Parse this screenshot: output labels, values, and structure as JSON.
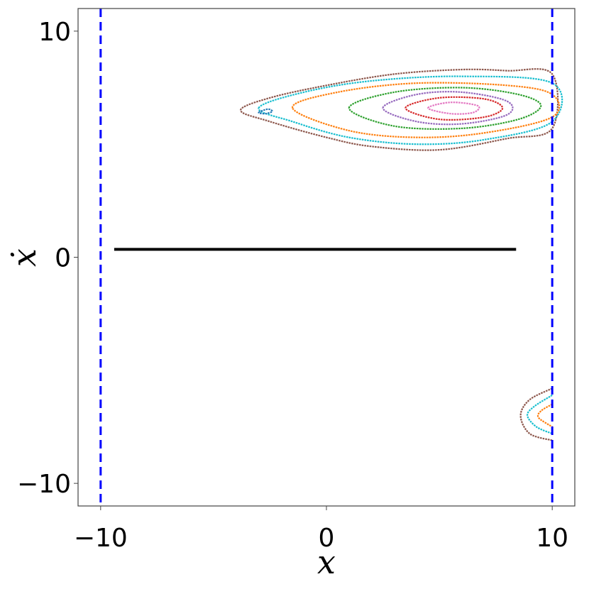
{
  "chart_data": {
    "type": "line",
    "xlabel": "x",
    "ylabel": "ẋ",
    "xlim": [
      -11,
      11
    ],
    "ylim": [
      -11,
      11
    ],
    "xticks": [
      {
        "value": -10,
        "label": "−10"
      },
      0,
      10
    ],
    "yticks": [
      {
        "value": -10,
        "label": "−10"
      },
      0,
      10
    ],
    "vlines": [
      {
        "x": -10,
        "color": "#0000ff"
      },
      {
        "x": 10,
        "color": "#0000ff"
      }
    ],
    "series": [
      {
        "color": "#000000",
        "closed": false,
        "x": [
          -9.4,
          8.4
        ],
        "y": [
          0.35,
          0.35
        ]
      },
      {
        "color": "#8c564b",
        "closed": true,
        "x": [
          -3.8,
          -2.5,
          0,
          3,
          6,
          8,
          10,
          10,
          8,
          5,
          2,
          0,
          -2.5
        ],
        "y": [
          6.5,
          7.05,
          7.6,
          8.1,
          8.3,
          8.25,
          8.1,
          5.7,
          5.25,
          4.75,
          4.9,
          5.3,
          6.0
        ]
      },
      {
        "color": "#17becf",
        "closed": true,
        "x": [
          -3,
          -1,
          2,
          6,
          10,
          10,
          7,
          4,
          1,
          -1.5
        ],
        "y": [
          6.6,
          7.3,
          7.8,
          8.0,
          7.7,
          6.0,
          5.2,
          5.0,
          5.3,
          6.0
        ]
      },
      {
        "color": "#ff7f0e",
        "closed": true,
        "x": [
          -1.5,
          0.5,
          4,
          8,
          10,
          10,
          7,
          4,
          1
        ],
        "y": [
          6.6,
          7.3,
          7.7,
          7.6,
          7.2,
          6.2,
          5.5,
          5.3,
          5.6
        ]
      },
      {
        "color": "#2ca02c",
        "closed": true,
        "x": [
          1,
          3,
          6,
          8.5,
          9.5,
          8.5,
          6,
          3
        ],
        "y": [
          6.6,
          7.3,
          7.5,
          7.2,
          6.7,
          6.1,
          5.7,
          5.8
        ]
      },
      {
        "color": "#9467bd",
        "closed": true,
        "x": [
          2.5,
          4,
          6,
          8,
          8,
          6,
          4
        ],
        "y": [
          6.6,
          7.2,
          7.3,
          6.9,
          6.3,
          5.9,
          6.0
        ]
      },
      {
        "color": "#d62728",
        "closed": true,
        "x": [
          3.5,
          5,
          7,
          7.8,
          7,
          5
        ],
        "y": [
          6.6,
          7.05,
          7.0,
          6.6,
          6.2,
          6.1
        ]
      },
      {
        "color": "#e377c2",
        "closed": true,
        "x": [
          4.5,
          5.5,
          6.7,
          6.5,
          5.5
        ],
        "y": [
          6.6,
          6.85,
          6.7,
          6.4,
          6.35
        ]
      },
      {
        "color": "#1f77b4",
        "closed": true,
        "x": [
          -3,
          -2.6,
          -2.4,
          -2.7
        ],
        "y": [
          6.4,
          6.55,
          6.45,
          6.35
        ]
      },
      {
        "color": "#8c564b",
        "closed": false,
        "x": [
          10,
          9,
          8.6,
          9,
          10
        ],
        "y": [
          -5.8,
          -6.3,
          -7.0,
          -7.8,
          -8.1
        ]
      },
      {
        "color": "#17becf",
        "closed": false,
        "x": [
          10,
          9.2,
          8.9,
          9.3,
          10
        ],
        "y": [
          -6.1,
          -6.6,
          -7.0,
          -7.5,
          -7.8
        ]
      },
      {
        "color": "#ff7f0e",
        "closed": false,
        "x": [
          10,
          9.5,
          9.4,
          10
        ],
        "y": [
          -6.5,
          -6.8,
          -7.1,
          -7.5
        ]
      }
    ]
  }
}
